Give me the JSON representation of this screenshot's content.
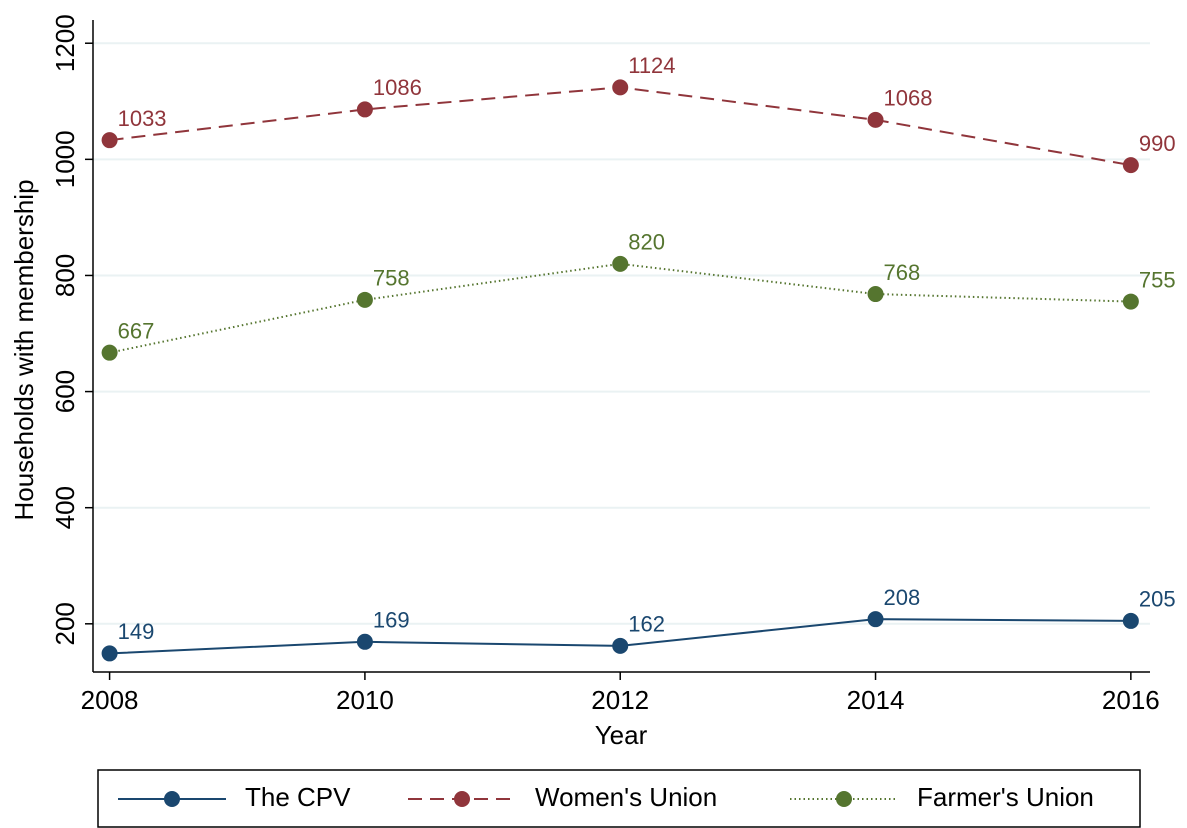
{
  "chart_data": {
    "type": "line",
    "x_label": "Year",
    "y_label": "Households with membership",
    "x": [
      2008,
      2010,
      2012,
      2014,
      2016
    ],
    "series": [
      {
        "name": "The CPV",
        "color": "#1a476f",
        "style": "solid",
        "values": [
          149,
          169,
          162,
          208,
          205
        ]
      },
      {
        "name": "Women's Union",
        "color": "#90353b",
        "style": "dash",
        "values": [
          1033,
          1086,
          1124,
          1068,
          990
        ]
      },
      {
        "name": "Farmer's Union",
        "color": "#55752f",
        "style": "dot",
        "values": [
          667,
          758,
          820,
          768,
          755
        ]
      }
    ],
    "xlim": [
      2007.87,
      2016.15
    ],
    "ylim": [
      117,
      1240
    ],
    "xticks": [
      2008,
      2010,
      2012,
      2014,
      2016
    ],
    "yticks": [
      200,
      400,
      600,
      800,
      1000,
      1200
    ],
    "grid": true,
    "legend": "bottom"
  }
}
